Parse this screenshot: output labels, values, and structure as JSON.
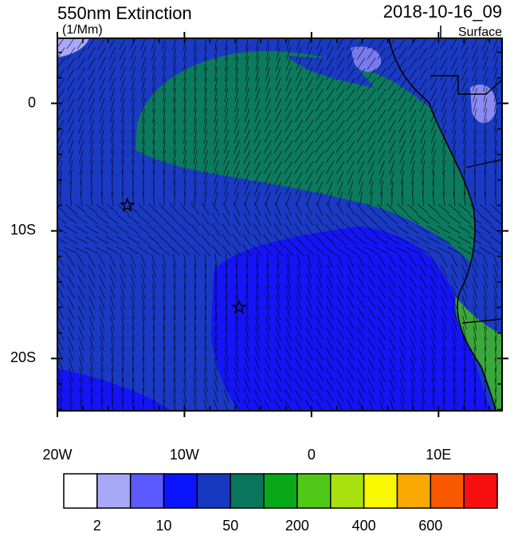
{
  "header": {
    "title": "550nm Extinction",
    "units": "(1/Mm)",
    "datetime": "2018-10-16_09",
    "level": "Surface"
  },
  "map": {
    "lon_range": [
      -20,
      15
    ],
    "lat_range": [
      5.1,
      -24.1
    ],
    "lon_ticks": [
      {
        "value": -20,
        "label": "20W"
      },
      {
        "value": -10,
        "label": "10W"
      },
      0,
      {
        "value": 10,
        "label": "10E"
      }
    ],
    "lat_ticks": [
      0,
      {
        "value": -10,
        "label": "10S"
      },
      {
        "value": -20,
        "label": "20S"
      }
    ],
    "markers": [
      {
        "lon": -14.5,
        "lat": -8
      },
      {
        "lon": -5.7,
        "lat": -16
      }
    ]
  },
  "colorbar": {
    "colors": [
      "#ffffff",
      "#a8a8f8",
      "#5a5aff",
      "#0a14ff",
      "#1438c0",
      "#08765c",
      "#08a818",
      "#50c818",
      "#a8e010",
      "#f8f800",
      "#f8a800",
      "#f85800",
      "#f81010"
    ],
    "labels": [
      2,
      10,
      50,
      200,
      400,
      600
    ]
  }
}
